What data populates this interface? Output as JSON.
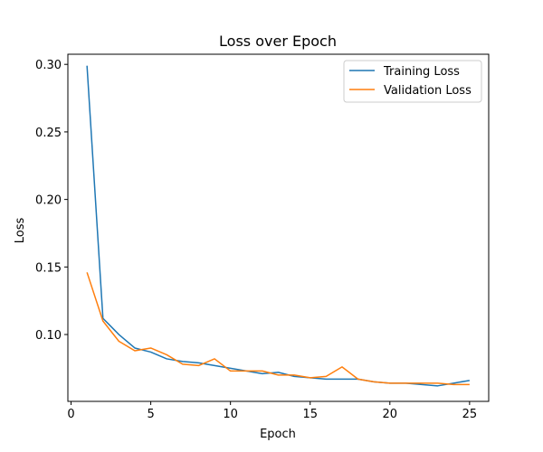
{
  "chart_data": {
    "type": "line",
    "title": "Loss over Epoch",
    "xlabel": "Epoch",
    "ylabel": "Loss",
    "xlim": [
      -0.2,
      26.2
    ],
    "ylim": [
      0.0505,
      0.3075
    ],
    "xticks": [
      0,
      5,
      10,
      15,
      20,
      25
    ],
    "yticks": [
      0.1,
      0.15,
      0.2,
      0.25,
      0.3
    ],
    "xtick_labels": [
      "0",
      "5",
      "10",
      "15",
      "20",
      "25"
    ],
    "ytick_labels": [
      "0.10",
      "0.15",
      "0.20",
      "0.25",
      "0.30"
    ],
    "grid": false,
    "legend_position": "top-right",
    "x": [
      1,
      2,
      3,
      4,
      5,
      6,
      7,
      8,
      9,
      10,
      11,
      12,
      13,
      14,
      15,
      16,
      17,
      18,
      19,
      20,
      21,
      22,
      23,
      24,
      25
    ],
    "series": [
      {
        "name": "Training Loss",
        "color": "#1f77b4",
        "values": [
          0.299,
          0.112,
          0.1,
          0.09,
          0.087,
          0.082,
          0.08,
          0.079,
          0.077,
          0.075,
          0.073,
          0.071,
          0.072,
          0.069,
          0.068,
          0.067,
          0.067,
          0.067,
          0.065,
          0.064,
          0.064,
          0.063,
          0.062,
          0.064,
          0.066
        ]
      },
      {
        "name": "Validation Loss",
        "color": "#ff7f0e",
        "values": [
          0.146,
          0.11,
          0.095,
          0.088,
          0.09,
          0.085,
          0.078,
          0.077,
          0.082,
          0.073,
          0.073,
          0.073,
          0.07,
          0.07,
          0.068,
          0.069,
          0.076,
          0.067,
          0.065,
          0.064,
          0.064,
          0.064,
          0.064,
          0.063,
          0.063
        ]
      }
    ]
  }
}
